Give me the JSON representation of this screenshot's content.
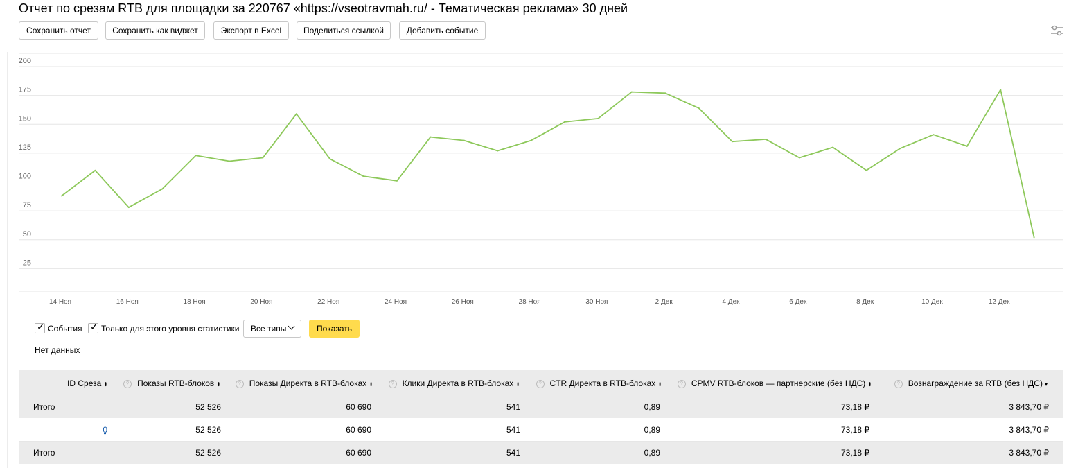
{
  "title": "Отчет по срезам RTB для площадки за 220767 «https://vseotravmah.ru/ - Тематическая реклама» 30 дней",
  "toolbar": {
    "save_report": "Сохранить отчет",
    "save_widget": "Сохранить как виджет",
    "export_excel": "Экспорт в Excel",
    "share_link": "Поделиться ссылкой",
    "add_event": "Добавить событие"
  },
  "chart_data": {
    "type": "line",
    "title": "",
    "xlabel": "",
    "ylabel": "",
    "ylim": [
      0,
      200
    ],
    "yticks": [
      25,
      50,
      75,
      100,
      125,
      150,
      175,
      200
    ],
    "x_tick_labels": [
      "14 Ноя",
      "16 Ноя",
      "18 Ноя",
      "20 Ноя",
      "22 Ноя",
      "24 Ноя",
      "26 Ноя",
      "28 Ноя",
      "30 Ноя",
      "2 Дек",
      "4 Дек",
      "6 Дек",
      "8 Дек",
      "10 Дек",
      "12 Дек"
    ],
    "x": [
      "14 Ноя",
      "15 Ноя",
      "16 Ноя",
      "17 Ноя",
      "18 Ноя",
      "19 Ноя",
      "20 Ноя",
      "21 Ноя",
      "22 Ноя",
      "23 Ноя",
      "24 Ноя",
      "25 Ноя",
      "26 Ноя",
      "27 Ноя",
      "28 Ноя",
      "29 Ноя",
      "30 Ноя",
      "1 Дек",
      "2 Дек",
      "3 Дек",
      "4 Дек",
      "5 Дек",
      "6 Дек",
      "7 Дек",
      "8 Дек",
      "9 Дек",
      "10 Дек",
      "11 Дек",
      "12 Дек",
      "13 Дек"
    ],
    "series": [
      {
        "color": "#8dc85a",
        "values": [
          88,
          110,
          78,
          94,
          123,
          118,
          121,
          159,
          120,
          105,
          101,
          139,
          136,
          127,
          136,
          152,
          155,
          178,
          177,
          164,
          135,
          137,
          121,
          130,
          110,
          129,
          141,
          131,
          180,
          52
        ]
      }
    ],
    "grid": true
  },
  "filters": {
    "events_label": "События",
    "level_only_label": "Только для этого уровня статистики",
    "types_select": "Все типы",
    "show_button": "Показать",
    "no_data": "Нет данных"
  },
  "table": {
    "headers": [
      {
        "label": "ID Среза",
        "help": false,
        "sort": "⬍"
      },
      {
        "label": "Показы RTB-блоков",
        "help": true,
        "sort": "⬍"
      },
      {
        "label": "Показы Директа в RTB-блоках",
        "help": true,
        "sort": "⬍"
      },
      {
        "label": "Клики Директа в RTB-блоках",
        "help": true,
        "sort": "⬍"
      },
      {
        "label": "CTR Директа в RTB-блоках",
        "help": true,
        "sort": "⬍"
      },
      {
        "label": "CPMV RTB-блоков — партнерские (без НДС)",
        "help": true,
        "sort": "⬍"
      },
      {
        "label": "Вознаграждение за RTB (без НДС)",
        "help": true,
        "sort": "▾"
      }
    ],
    "help_glyph": "?",
    "total_top": [
      "Итого",
      "52 526",
      "60 690",
      "541",
      "0,89",
      "73,18 ₽",
      "3 843,70 ₽"
    ],
    "row": [
      "0",
      "52 526",
      "60 690",
      "541",
      "0,89",
      "73,18 ₽",
      "3 843,70 ₽"
    ],
    "total_bottom": [
      "Итого",
      "52 526",
      "60 690",
      "541",
      "0,89",
      "73,18 ₽",
      "3 843,70 ₽"
    ]
  }
}
